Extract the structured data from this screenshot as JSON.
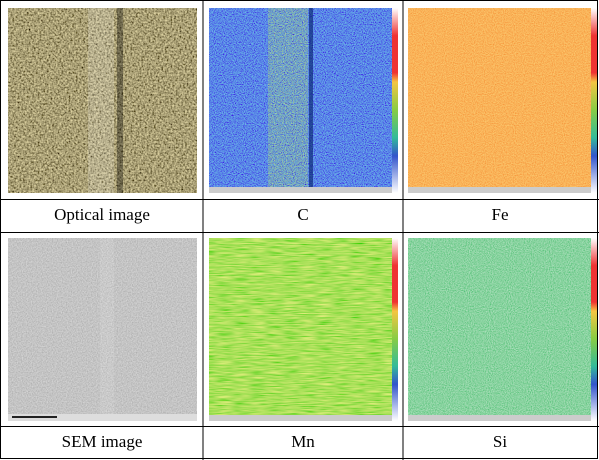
{
  "panels": [
    {
      "label": "Optical image"
    },
    {
      "label": "C"
    },
    {
      "label": "Fe"
    },
    {
      "label": "SEM image"
    },
    {
      "label": "Mn"
    },
    {
      "label": "Si"
    }
  ]
}
